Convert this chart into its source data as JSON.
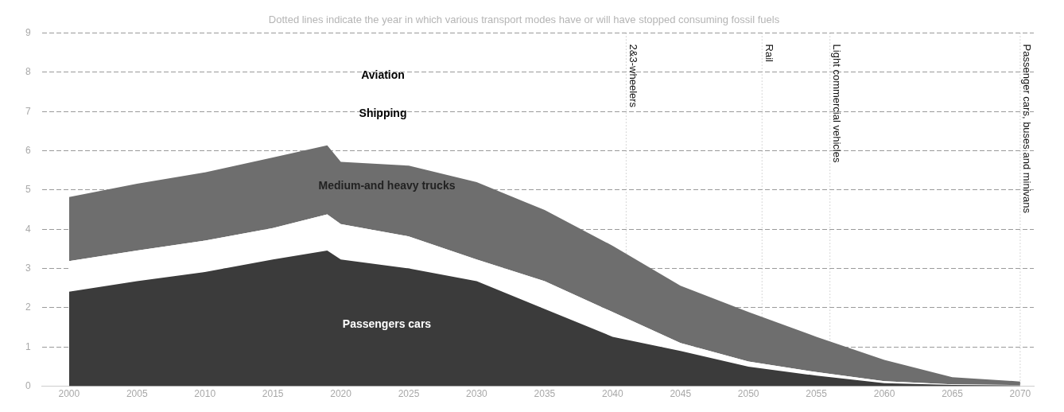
{
  "chart_data": {
    "type": "area",
    "stacked": true,
    "title": "Dotted lines indicate the year in which various transport modes have or will have stopped consuming fossil fuels",
    "x": [
      2000,
      2005,
      2010,
      2015,
      2019,
      2020,
      2025,
      2030,
      2035,
      2040,
      2045,
      2050,
      2055,
      2060,
      2065,
      2070
    ],
    "series": [
      {
        "name": "Passengers cars",
        "color": "#3b3b3b",
        "values": [
          2.41,
          2.68,
          2.91,
          3.23,
          3.46,
          3.23,
          3.0,
          2.68,
          1.97,
          1.26,
          0.9,
          0.5,
          0.27,
          0.08,
          0.03,
          0.02
        ]
      },
      {
        "color": "#ffffff",
        "values": [
          0.78,
          0.78,
          0.8,
          0.8,
          0.92,
          0.9,
          0.82,
          0.55,
          0.71,
          0.63,
          0.2,
          0.13,
          0.09,
          0.05,
          0.02,
          0.01
        ]
      },
      {
        "name": "Medium-and heavy trucks",
        "color": "#6e6e6e",
        "values": [
          1.63,
          1.7,
          1.74,
          1.8,
          1.76,
          1.59,
          1.8,
          1.97,
          1.81,
          1.69,
          1.46,
          1.26,
          0.9,
          0.54,
          0.18,
          0.09
        ]
      }
    ],
    "xlim": [
      1998,
      2071
    ],
    "xticks": [
      2000,
      2005,
      2010,
      2015,
      2020,
      2025,
      2030,
      2035,
      2040,
      2045,
      2050,
      2055,
      2060,
      2065,
      2070
    ],
    "ylim": [
      0,
      9
    ],
    "yticks": [
      0,
      1,
      2,
      3,
      4,
      5,
      6,
      7,
      8,
      9
    ],
    "grid": "y",
    "legend": false,
    "ref_lines": [
      {
        "axis": "x",
        "value": 2041,
        "label": "2&3-wheelers",
        "line_style": "dotted"
      },
      {
        "axis": "x",
        "value": 2051,
        "label": "Rail",
        "line_style": "dotted"
      },
      {
        "axis": "x",
        "value": 2056,
        "label": "Light commercial vehicles",
        "line_style": "dotted"
      },
      {
        "axis": "x",
        "value": 2070,
        "label": "Passenger cars, buses and minivans",
        "line_style": "dotted"
      }
    ],
    "annotations": [
      "Aviation",
      "Shipping"
    ]
  }
}
